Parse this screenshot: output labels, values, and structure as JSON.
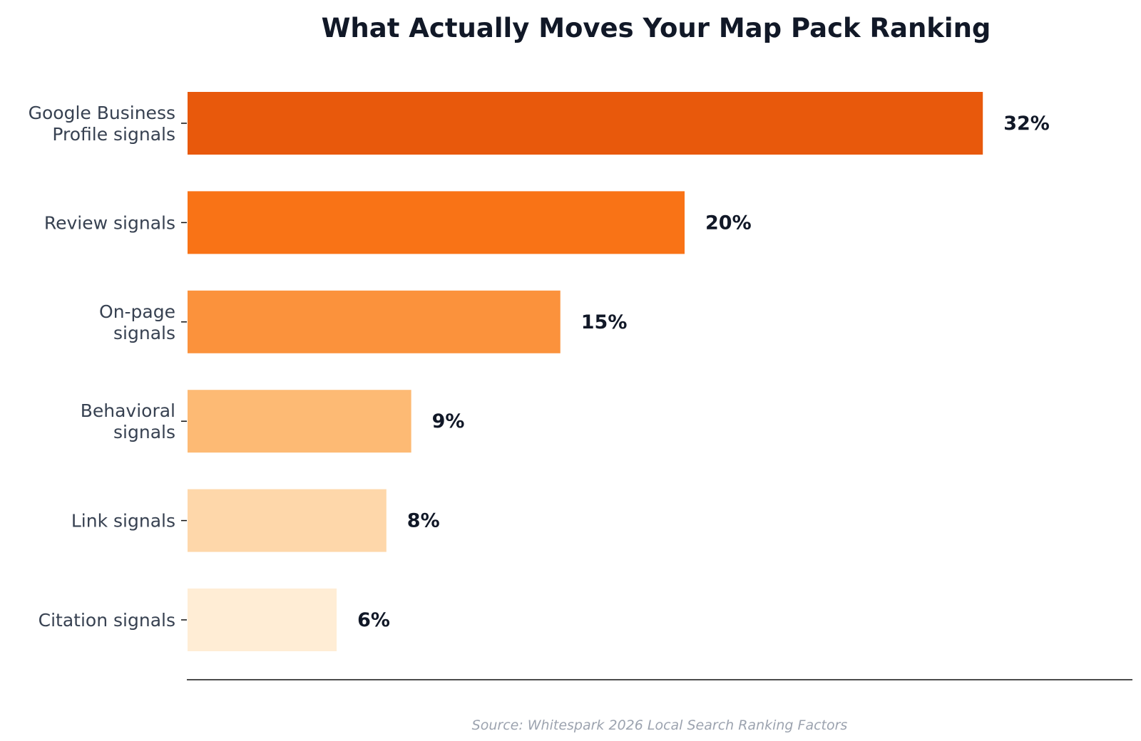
{
  "chart_data": {
    "type": "bar",
    "orientation": "horizontal",
    "title": "What Actually Moves Your Map Pack Ranking",
    "categories": [
      [
        "Google Business",
        "Profile signals"
      ],
      [
        "Review signals"
      ],
      [
        "On-page",
        "signals"
      ],
      [
        "Behavioral",
        "signals"
      ],
      [
        "Link signals"
      ],
      [
        "Citation signals"
      ]
    ],
    "values": [
      32,
      20,
      15,
      9,
      8,
      6
    ],
    "value_labels": [
      "32%",
      "20%",
      "15%",
      "9%",
      "8%",
      "6%"
    ],
    "bar_colors": [
      "#e8590c",
      "#f97316",
      "#fb923c",
      "#fdba74",
      "#fed7aa",
      "#ffedd5"
    ],
    "xlim": [
      0,
      38
    ],
    "xlabel": "",
    "ylabel": "",
    "grid": false,
    "source": "Source: Whitespark 2026 Local Search Ranking Factors"
  }
}
